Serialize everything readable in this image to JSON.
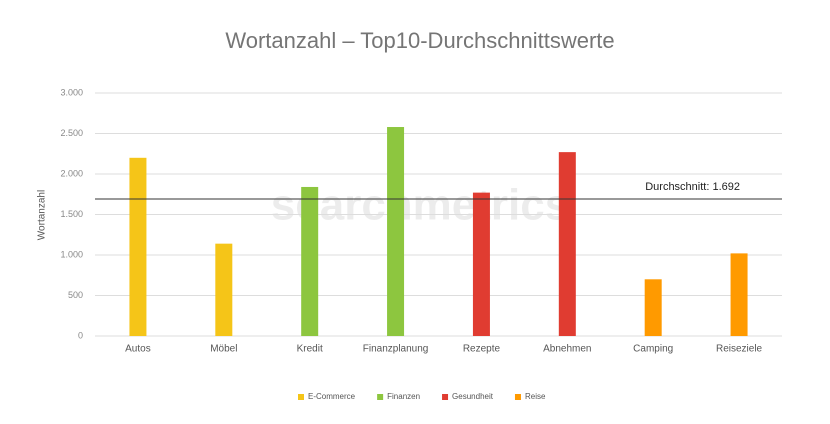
{
  "chart_data": {
    "type": "bar",
    "title": "Wortanzahl – Top10-Durchschnittswerte",
    "y_label": "Wortanzahl",
    "watermark": "searchmetrics",
    "categories": [
      "Autos",
      "Möbel",
      "Kredit",
      "Finanzplanung",
      "Rezepte",
      "Abnehmen",
      "Camping",
      "Reiseziele"
    ],
    "series": [
      {
        "name": "E-Commerce",
        "color": "#f5c518",
        "values": [
          2200,
          1140,
          null,
          null,
          null,
          null,
          null,
          null
        ]
      },
      {
        "name": "Finanzen",
        "color": "#8dc63f",
        "values": [
          null,
          null,
          1840,
          2580,
          null,
          null,
          null,
          null
        ]
      },
      {
        "name": "Gesundheit",
        "color": "#e03c31",
        "values": [
          null,
          null,
          null,
          null,
          1770,
          2270,
          null,
          null
        ]
      },
      {
        "name": "Reise",
        "color": "#ff9a00",
        "values": [
          null,
          null,
          null,
          null,
          null,
          null,
          700,
          1020
        ]
      }
    ],
    "reference_line": {
      "value": 1692,
      "label": "Durchschnitt: 1.692"
    },
    "ylim": [
      0,
      3000
    ],
    "yticks": [
      0,
      500,
      {
        "value": 1000,
        "label": "1.000"
      },
      {
        "value": 1500,
        "label": "1.500"
      },
      {
        "value": 2000,
        "label": "2.000"
      },
      {
        "value": 2500,
        "label": "2.500"
      },
      {
        "value": 3000,
        "label": "3.000"
      }
    ],
    "grid": true,
    "legend": "bottom"
  }
}
